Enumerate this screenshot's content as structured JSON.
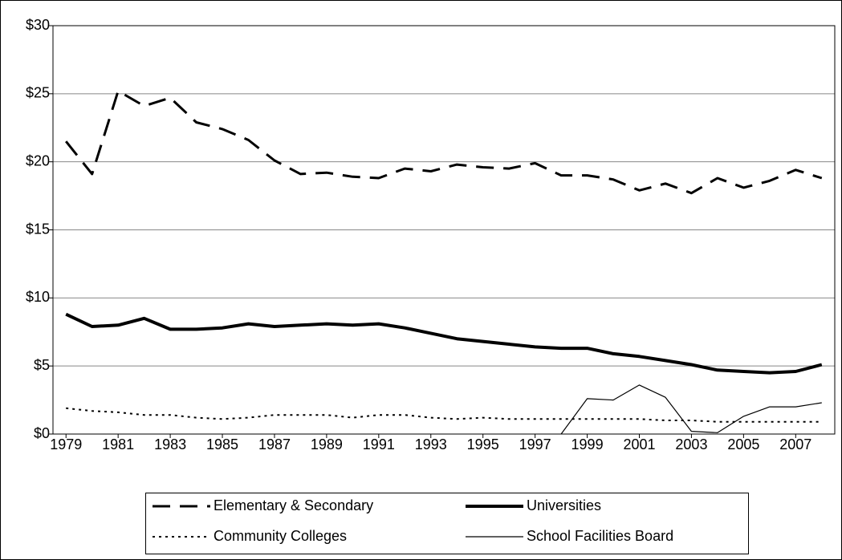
{
  "chart_data": {
    "type": "line",
    "x": [
      1979,
      1980,
      1981,
      1982,
      1983,
      1984,
      1985,
      1986,
      1987,
      1988,
      1989,
      1990,
      1991,
      1992,
      1993,
      1994,
      1995,
      1996,
      1997,
      1998,
      1999,
      2000,
      2001,
      2002,
      2003,
      2004,
      2005,
      2006,
      2007,
      2008
    ],
    "xlim": [
      1978.5,
      2008.5
    ],
    "xticks": [
      1979,
      1981,
      1983,
      1985,
      1987,
      1989,
      1991,
      1993,
      1995,
      1997,
      1999,
      2001,
      2003,
      2005,
      2007
    ],
    "ylim": [
      0,
      30
    ],
    "yticks": [
      {
        "value": 0,
        "label": "$0"
      },
      {
        "value": 5,
        "label": "$5"
      },
      {
        "value": 10,
        "label": "$10"
      },
      {
        "value": 15,
        "label": "$15"
      },
      {
        "value": 20,
        "label": "$20"
      },
      {
        "value": 25,
        "label": "$25"
      },
      {
        "value": 30,
        "label": "$30"
      }
    ],
    "grid": true,
    "legend": "bottom",
    "series": [
      {
        "name": "Elementary & Secondary",
        "color": "#000000",
        "style": "dashed",
        "width": 3,
        "values": [
          21.5,
          19.1,
          25.2,
          24.1,
          24.7,
          22.9,
          22.4,
          21.6,
          20.1,
          19.1,
          19.2,
          18.9,
          18.8,
          19.5,
          19.3,
          19.8,
          19.6,
          19.5,
          19.9,
          19.0,
          19.0,
          18.7,
          17.9,
          18.4,
          17.7,
          18.8,
          18.1,
          18.6,
          19.4,
          18.8
        ]
      },
      {
        "name": "Universities",
        "color": "#000000",
        "style": "solid",
        "width": 4,
        "values": [
          8.8,
          7.9,
          8.0,
          8.5,
          7.7,
          7.7,
          7.8,
          8.1,
          7.9,
          8.0,
          8.1,
          8.0,
          8.1,
          7.8,
          7.4,
          7.0,
          6.8,
          6.6,
          6.4,
          6.3,
          6.3,
          5.9,
          5.7,
          5.4,
          5.1,
          4.7,
          4.6,
          4.5,
          4.6,
          5.1
        ]
      },
      {
        "name": "Community Colleges",
        "color": "#000000",
        "style": "dotted",
        "width": 2,
        "values": [
          1.9,
          1.7,
          1.6,
          1.4,
          1.4,
          1.2,
          1.1,
          1.2,
          1.4,
          1.4,
          1.4,
          1.2,
          1.4,
          1.4,
          1.2,
          1.1,
          1.2,
          1.1,
          1.1,
          1.1,
          1.1,
          1.1,
          1.1,
          1.0,
          1.0,
          0.9,
          0.9,
          0.9,
          0.9,
          0.9
        ]
      },
      {
        "name": "School Facilities Board",
        "color": "#000000",
        "style": "solid",
        "width": 1.2,
        "values": [
          null,
          null,
          null,
          null,
          null,
          null,
          null,
          null,
          null,
          null,
          null,
          null,
          null,
          null,
          null,
          null,
          null,
          null,
          null,
          0,
          2.6,
          2.5,
          3.6,
          2.7,
          0.2,
          0.1,
          1.3,
          2.0,
          2.0,
          2.3
        ]
      }
    ]
  }
}
